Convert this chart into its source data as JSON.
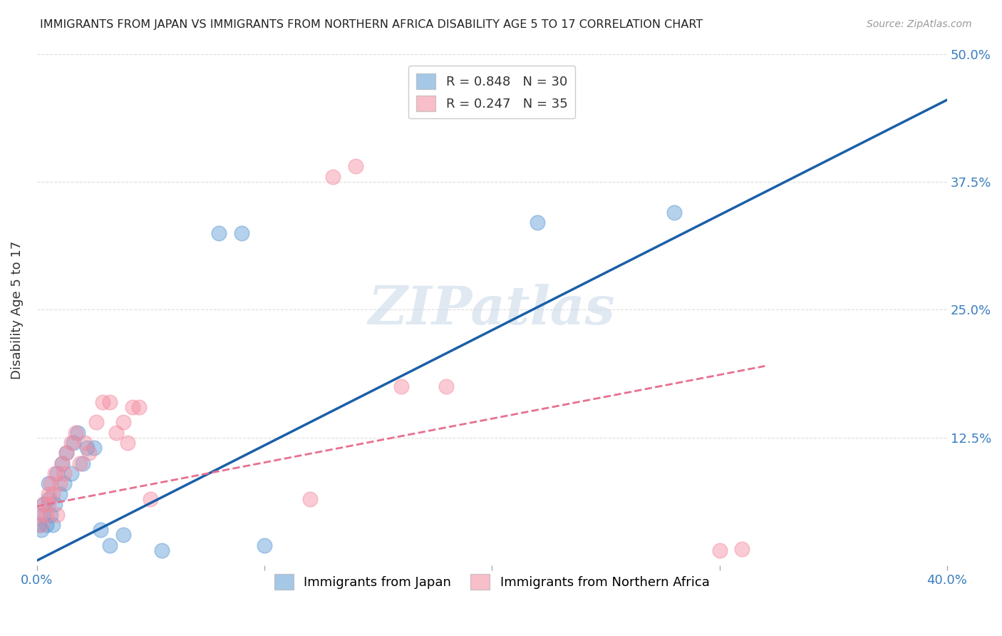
{
  "title": "IMMIGRANTS FROM JAPAN VS IMMIGRANTS FROM NORTHERN AFRICA DISABILITY AGE 5 TO 17 CORRELATION CHART",
  "source": "Source: ZipAtlas.com",
  "ylabel": "Disability Age 5 to 17",
  "ytick_vals": [
    0.0,
    0.125,
    0.25,
    0.375,
    0.5
  ],
  "xlim": [
    0.0,
    0.4
  ],
  "ylim": [
    0.0,
    0.5
  ],
  "watermark": "ZIPatlas",
  "legend_top": [
    {
      "label": "R = 0.848   N = 30",
      "color": "#7bafd4"
    },
    {
      "label": "R = 0.247   N = 35",
      "color": "#f4a0b0"
    }
  ],
  "legend_bottom": [
    {
      "label": "Immigrants from Japan",
      "color": "#7bafd4"
    },
    {
      "label": "Immigrants from Northern Africa",
      "color": "#f4a0b0"
    }
  ],
  "japan_scatter_x": [
    0.001,
    0.002,
    0.003,
    0.003,
    0.004,
    0.005,
    0.005,
    0.006,
    0.007,
    0.008,
    0.009,
    0.01,
    0.011,
    0.012,
    0.013,
    0.015,
    0.016,
    0.018,
    0.02,
    0.022,
    0.025,
    0.028,
    0.032,
    0.038,
    0.055,
    0.08,
    0.09,
    0.1,
    0.22,
    0.28
  ],
  "japan_scatter_y": [
    0.04,
    0.035,
    0.05,
    0.06,
    0.04,
    0.065,
    0.08,
    0.05,
    0.04,
    0.06,
    0.09,
    0.07,
    0.1,
    0.08,
    0.11,
    0.09,
    0.12,
    0.13,
    0.1,
    0.115,
    0.115,
    0.035,
    0.02,
    0.03,
    0.015,
    0.325,
    0.325,
    0.02,
    0.335,
    0.345
  ],
  "africa_scatter_x": [
    0.001,
    0.002,
    0.003,
    0.004,
    0.005,
    0.005,
    0.006,
    0.007,
    0.008,
    0.009,
    0.01,
    0.011,
    0.012,
    0.013,
    0.015,
    0.017,
    0.019,
    0.021,
    0.023,
    0.026,
    0.029,
    0.032,
    0.035,
    0.038,
    0.04,
    0.042,
    0.045,
    0.05,
    0.12,
    0.13,
    0.14,
    0.16,
    0.18,
    0.3,
    0.31
  ],
  "africa_scatter_y": [
    0.05,
    0.04,
    0.06,
    0.05,
    0.07,
    0.06,
    0.08,
    0.07,
    0.09,
    0.05,
    0.08,
    0.1,
    0.09,
    0.11,
    0.12,
    0.13,
    0.1,
    0.12,
    0.11,
    0.14,
    0.16,
    0.16,
    0.13,
    0.14,
    0.12,
    0.155,
    0.155,
    0.065,
    0.065,
    0.38,
    0.39,
    0.175,
    0.175,
    0.015,
    0.016
  ],
  "japan_line_x": [
    0.0,
    0.4
  ],
  "japan_line_y": [
    0.005,
    0.455
  ],
  "africa_line_x": [
    0.0,
    0.32
  ],
  "africa_line_y": [
    0.058,
    0.195
  ],
  "japan_color": "#5b9bd5",
  "africa_color": "#f48ca0",
  "japan_line_color": "#1a5fa8",
  "africa_line_color": "#e87090",
  "background_color": "#ffffff",
  "grid_color": "#dddddd"
}
